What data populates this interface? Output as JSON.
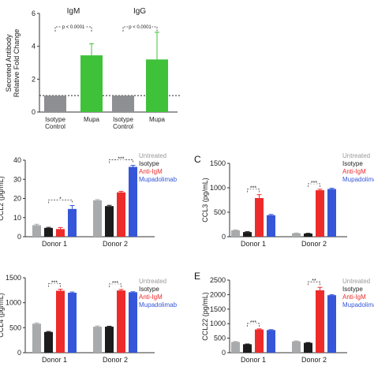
{
  "colors": {
    "gray": "#a8aaab",
    "black": "#1c1c1c",
    "red": "#ee2b2b",
    "blue": "#3556d8",
    "green": "#3fc23a",
    "dark_gray": "#8d8f92",
    "untreated_text": "#999999"
  },
  "panel_labels": {
    "C": "C",
    "E": "E"
  },
  "chart_data": [
    {
      "id": "antibody",
      "type": "bar",
      "ylabel": "Secreted Antibody\nRelative Fold Change",
      "ylim": [
        0,
        6
      ],
      "yticks": [
        0,
        2,
        4,
        6
      ],
      "reference_line": 1,
      "groups": [
        {
          "label": "IgM",
          "pvalue": "p < 0.0001",
          "bars": [
            {
              "name": "Isotype\nControl",
              "value": 1.0,
              "error": 0,
              "color": "dark_gray"
            },
            {
              "name": "Mupa",
              "value": 3.45,
              "error": 0.7,
              "color": "green"
            }
          ]
        },
        {
          "label": "IgG",
          "pvalue": "p < 0.0001",
          "bars": [
            {
              "name": "Isotype\nControl",
              "value": 1.0,
              "error": 0,
              "color": "dark_gray"
            },
            {
              "name": "Mupa",
              "value": 3.2,
              "error": 1.65,
              "color": "green"
            }
          ]
        }
      ]
    },
    {
      "id": "ccl2",
      "type": "bar",
      "ylabel": "CCL2 (pg/mL)",
      "ylim": [
        0,
        40
      ],
      "yticks": [
        0,
        10,
        20,
        30,
        40
      ],
      "categories": [
        "Donor 1",
        "Donor 2"
      ],
      "series": [
        {
          "name": "Untreated",
          "color": "gray",
          "values": [
            6.0,
            19.0
          ],
          "errors": [
            0.5,
            0.4
          ]
        },
        {
          "name": "Isotype",
          "color": "black",
          "values": [
            4.6,
            16.0
          ],
          "errors": [
            0.3,
            0.4
          ]
        },
        {
          "name": "Anti-IgM",
          "color": "red",
          "values": [
            4.0,
            23.2
          ],
          "errors": [
            0.8,
            0.5
          ]
        },
        {
          "name": "Mupadolimab",
          "color": "blue",
          "values": [
            14.5,
            36.5
          ],
          "errors": [
            1.8,
            0.8
          ]
        }
      ],
      "significance": [
        {
          "category": 0,
          "from": 1,
          "to": 3,
          "label": "*"
        },
        {
          "category": 1,
          "from": 1,
          "to": 3,
          "label": "***"
        }
      ],
      "legend_position": "top-right"
    },
    {
      "id": "ccl3",
      "type": "bar",
      "ylabel": "CCL3 (pg/mL)",
      "ylim": [
        0,
        1500
      ],
      "yticks": [
        0,
        500,
        1000,
        1500
      ],
      "categories": [
        "Donor 1",
        "Donor 2"
      ],
      "series": [
        {
          "name": "Untreated",
          "color": "gray",
          "values": [
            130,
            70
          ],
          "errors": [
            10,
            5
          ]
        },
        {
          "name": "Isotype",
          "color": "black",
          "values": [
            95,
            65
          ],
          "errors": [
            8,
            5
          ]
        },
        {
          "name": "Anti-IgM",
          "color": "red",
          "values": [
            790,
            950
          ],
          "errors": [
            70,
            20
          ]
        },
        {
          "name": "Mupadolimab",
          "color": "blue",
          "values": [
            440,
            975
          ],
          "errors": [
            15,
            15
          ]
        }
      ],
      "significance": [
        {
          "category": 0,
          "from": 1,
          "to": 2,
          "label": "***"
        },
        {
          "category": 1,
          "from": 1,
          "to": 2,
          "label": "***"
        }
      ],
      "legend_position": "top-right"
    },
    {
      "id": "ccl4",
      "type": "bar",
      "ylabel": "CCL4 (pg/mL)",
      "ylim": [
        0,
        1500
      ],
      "yticks": [
        0,
        500,
        1000,
        1500
      ],
      "categories": [
        "Donor 1",
        "Donor 2"
      ],
      "series": [
        {
          "name": "Untreated",
          "color": "gray",
          "values": [
            580,
            520
          ],
          "errors": [
            15,
            15
          ]
        },
        {
          "name": "Isotype",
          "color": "black",
          "values": [
            415,
            520
          ],
          "errors": [
            10,
            10
          ]
        },
        {
          "name": "Anti-IgM",
          "color": "red",
          "values": [
            1240,
            1245
          ],
          "errors": [
            30,
            20
          ]
        },
        {
          "name": "Mupadolimab",
          "color": "blue",
          "values": [
            1200,
            1210
          ],
          "errors": [
            15,
            10
          ]
        }
      ],
      "significance": [
        {
          "category": 0,
          "from": 1,
          "to": 2,
          "label": "***"
        },
        {
          "category": 1,
          "from": 1,
          "to": 2,
          "label": "***"
        }
      ],
      "legend_position": "top-right"
    },
    {
      "id": "ccl22",
      "type": "bar",
      "ylabel": "CCL22 (pg/mL)",
      "ylim": [
        0,
        2500
      ],
      "yticks": [
        0,
        500,
        1000,
        1500,
        2000,
        2500
      ],
      "categories": [
        "Donor 1",
        "Donor 2"
      ],
      "series": [
        {
          "name": "Untreated",
          "color": "gray",
          "values": [
            370,
            390
          ],
          "errors": [
            15,
            15
          ]
        },
        {
          "name": "Isotype",
          "color": "black",
          "values": [
            290,
            340
          ],
          "errors": [
            10,
            10
          ]
        },
        {
          "name": "Anti-IgM",
          "color": "red",
          "values": [
            800,
            2150
          ],
          "errors": [
            20,
            100
          ]
        },
        {
          "name": "Mupadolimab",
          "color": "blue",
          "values": [
            780,
            1980
          ],
          "errors": [
            15,
            20
          ]
        }
      ],
      "significance": [
        {
          "category": 0,
          "from": 1,
          "to": 2,
          "label": "***"
        },
        {
          "category": 1,
          "from": 1,
          "to": 2,
          "label": "**"
        }
      ],
      "legend_position": "top-right"
    }
  ]
}
